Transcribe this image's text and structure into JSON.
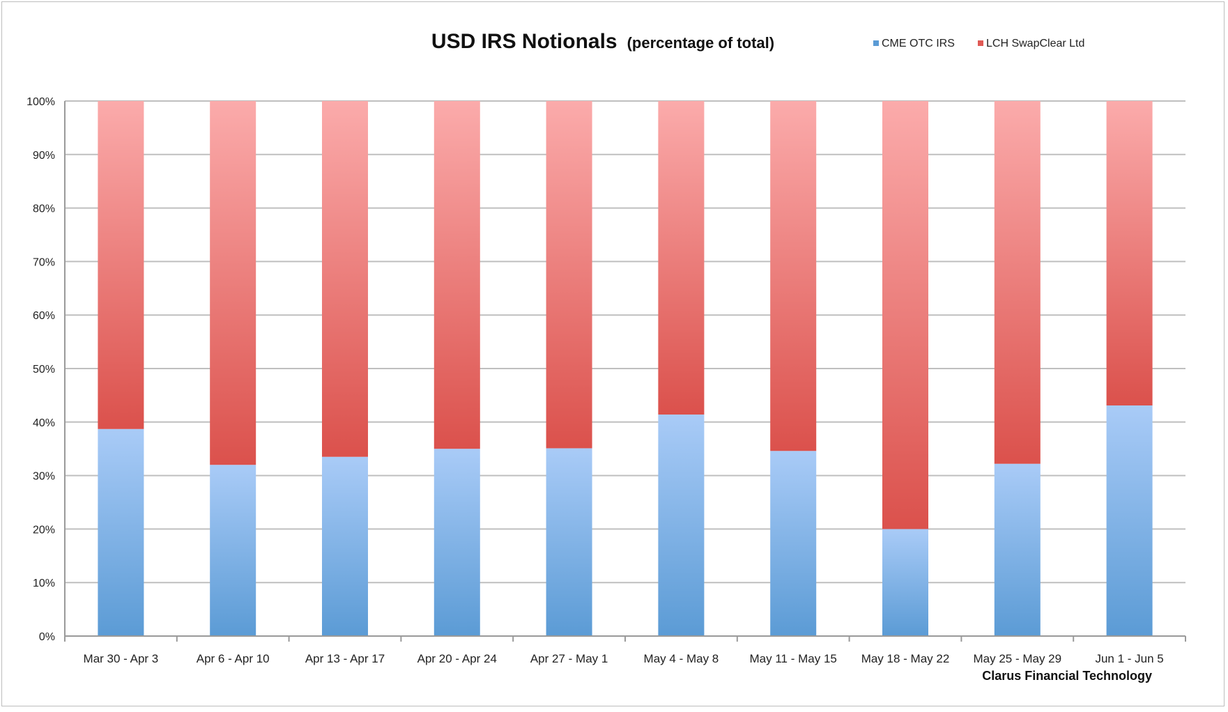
{
  "chart_data": {
    "type": "bar",
    "stacked": true,
    "title": "USD IRS Notionals",
    "subtitle": "(percentage of total)",
    "xlabel": "",
    "ylabel": "",
    "ylim": [
      0,
      100
    ],
    "y_ticks": [
      "0%",
      "10%",
      "20%",
      "30%",
      "40%",
      "50%",
      "60%",
      "70%",
      "80%",
      "90%",
      "100%"
    ],
    "grid": true,
    "legend_position": "top-right",
    "categories": [
      "Mar 30 - Apr 3",
      "Apr 6 - Apr 10",
      "Apr 13 - Apr 17",
      "Apr 20 - Apr 24",
      "Apr 27 - May 1",
      "May 4 - May 8",
      "May 11 - May 15",
      "May 18 - May 22",
      "May 25 - May 29",
      "Jun 1 - Jun 5"
    ],
    "series": [
      {
        "name": "CME OTC IRS",
        "color": "#5b9bd5",
        "values": [
          38.7,
          32.0,
          33.5,
          35.0,
          35.1,
          41.4,
          34.6,
          20.0,
          32.2,
          43.1
        ]
      },
      {
        "name": "LCH SwapClear Ltd",
        "color": "#e05a55",
        "values": [
          61.3,
          68.0,
          66.5,
          65.0,
          64.9,
          58.6,
          65.4,
          80.0,
          67.8,
          56.9
        ]
      }
    ],
    "annotation": "Clarus Financial Technology"
  }
}
